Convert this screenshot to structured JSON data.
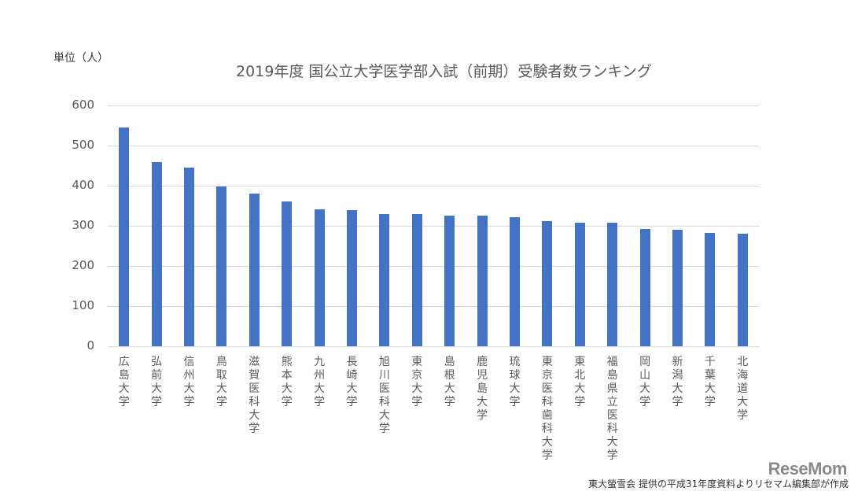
{
  "unit_label": "単位（人）",
  "source_text": "東大螢雪会 提供の平成31年度資料よりリセマム編集部が作成",
  "logo_text": "ReseMom",
  "bar_color": "#4472C4",
  "chart_data": {
    "type": "bar",
    "title": "2019年度 国公立大学医学部入試（前期）受験者数ランキング",
    "xlabel": "",
    "ylabel": "単位（人）",
    "ylim": [
      0,
      600
    ],
    "yticks": [
      0,
      100,
      200,
      300,
      400,
      500,
      600
    ],
    "grid": true,
    "legend": "none",
    "categories": [
      "広島大学",
      "弘前大学",
      "信州大学",
      "鳥取大学",
      "滋賀医科大学",
      "熊本大学",
      "九州大学",
      "長崎大学",
      "旭川医科大学",
      "東京大学",
      "島根大学",
      "鹿児島大学",
      "琉球大学",
      "東京医科歯科大学",
      "東北大学",
      "福島県立医科大学",
      "岡山大学",
      "新潟大学",
      "千葉大学",
      "北海道大学"
    ],
    "values": [
      546,
      459,
      445,
      398,
      380,
      360,
      342,
      340,
      330,
      330,
      326,
      326,
      322,
      311,
      307,
      307,
      293,
      291,
      283,
      281
    ]
  }
}
